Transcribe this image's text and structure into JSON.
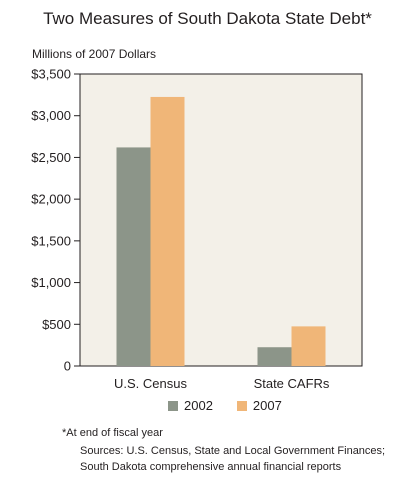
{
  "chart_data": {
    "type": "bar",
    "title": "Two Measures of South Dakota State Debt*",
    "ylabel": "Millions of 2007 Dollars",
    "categories": [
      "U.S. Census",
      "State CAFRs"
    ],
    "series": [
      {
        "name": "2002",
        "values": [
          2620,
          225
        ],
        "color": "#8c9589"
      },
      {
        "name": "2007",
        "values": [
          3225,
          475
        ],
        "color": "#f0b678"
      }
    ],
    "ylim": [
      0,
      3500
    ],
    "yticks": [
      0,
      500,
      1000,
      1500,
      2000,
      2500,
      3000,
      3500
    ],
    "ytick_labels": [
      "0",
      "$500",
      "$1,000",
      "$1,500",
      "$2,000",
      "$2,500",
      "$3,000",
      "$3,500"
    ],
    "grid": false,
    "plot_background": "#f3f0e8",
    "legend_position": "bottom",
    "note": "*At end of fiscal year",
    "sources": "Sources: U.S. Census, State and Local Government Finances; South Dakota comprehensive annual financial reports"
  }
}
